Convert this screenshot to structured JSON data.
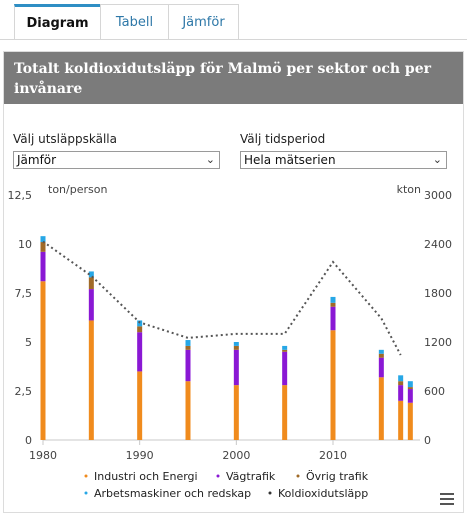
{
  "tabs": [
    {
      "label": "Diagram",
      "active": true
    },
    {
      "label": "Tabell",
      "active": false
    },
    {
      "label": "Jämför",
      "active": false
    }
  ],
  "panel": {
    "title": "Totalt koldioxidutsläpp för Malmö per sektor och per invånare"
  },
  "controls": {
    "source_label": "Välj utsläppskälla",
    "source_value": "Jämför",
    "period_label": "Välj tidsperiod",
    "period_value": "Hela mätserien"
  },
  "colors": {
    "industri": "#f08b1d",
    "vag": "#8a18d4",
    "ovrig": "#a06a27",
    "arbets": "#27a7e6",
    "line": "#555555"
  },
  "chart_data": {
    "type": "bar",
    "stacked": true,
    "ylabel_left": "ton/person",
    "ylabel_right": "kton",
    "ylim_left": [
      0,
      12.5
    ],
    "ylim_right": [
      0,
      3000
    ],
    "yticks_left": [
      "0",
      "2,5",
      "5",
      "7,5",
      "10",
      "12,5"
    ],
    "yticks_right": [
      "0",
      "600",
      "1200",
      "1800",
      "2400",
      "3000"
    ],
    "xlim": [
      1980,
      2019
    ],
    "xticks": [
      "1980",
      "1990",
      "2000",
      "2010"
    ],
    "x": [
      1980,
      1985,
      1990,
      1995,
      2000,
      2005,
      2010,
      2015,
      2017,
      2018
    ],
    "series": [
      {
        "name": "Industri och Energi",
        "values": [
          8.1,
          6.1,
          3.5,
          3.0,
          2.8,
          2.8,
          5.6,
          3.2,
          2.0,
          1.9
        ]
      },
      {
        "name": "Vägtrafik",
        "values": [
          1.5,
          1.6,
          2.0,
          1.6,
          1.8,
          1.7,
          1.2,
          1.0,
          0.8,
          0.7
        ]
      },
      {
        "name": "Övrig trafik",
        "values": [
          0.5,
          0.6,
          0.3,
          0.2,
          0.2,
          0.1,
          0.2,
          0.2,
          0.2,
          0.1
        ]
      },
      {
        "name": "Arbetsmaskiner och redskap",
        "values": [
          0.3,
          0.3,
          0.3,
          0.3,
          0.2,
          0.2,
          0.3,
          0.2,
          0.3,
          0.3
        ]
      }
    ],
    "line": {
      "name": "Koldioxidutsläpp",
      "axis": "right",
      "values": [
        2430,
        2010,
        1440,
        1250,
        1300,
        1300,
        2180,
        1490,
        1040,
        null
      ]
    }
  }
}
